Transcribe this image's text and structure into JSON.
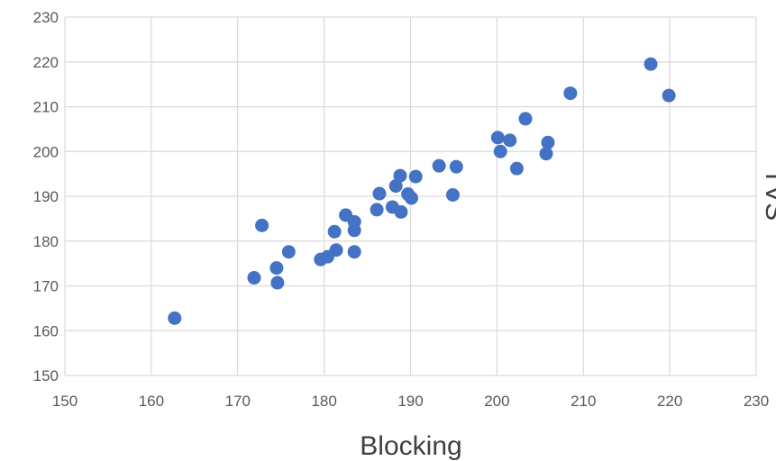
{
  "chart_data": {
    "type": "scatter",
    "title": "",
    "xlabel": "Blocking",
    "ylabel": "TVS",
    "xlim": [
      150,
      230
    ],
    "ylim": [
      150,
      230
    ],
    "x_ticks": [
      150,
      160,
      170,
      180,
      190,
      200,
      210,
      220,
      230
    ],
    "y_ticks": [
      150,
      160,
      170,
      180,
      190,
      200,
      210,
      220,
      230
    ],
    "grid": true,
    "legend": "none",
    "marker_color": "#4472C4",
    "series": [
      {
        "points": [
          [
            162.7,
            162.8
          ],
          [
            171.9,
            171.8
          ],
          [
            172.8,
            183.5
          ],
          [
            174.5,
            174.0
          ],
          [
            174.6,
            170.7
          ],
          [
            175.9,
            177.6
          ],
          [
            179.6,
            175.9
          ],
          [
            180.4,
            176.5
          ],
          [
            181.2,
            182.1
          ],
          [
            181.4,
            178.0
          ],
          [
            182.5,
            185.8
          ],
          [
            183.5,
            184.3
          ],
          [
            183.5,
            182.4
          ],
          [
            183.5,
            177.6
          ],
          [
            186.1,
            187.0
          ],
          [
            186.4,
            190.6
          ],
          [
            187.9,
            187.6
          ],
          [
            188.3,
            192.3
          ],
          [
            188.8,
            194.6
          ],
          [
            188.9,
            186.5
          ],
          [
            189.7,
            190.5
          ],
          [
            190.1,
            189.6
          ],
          [
            190.6,
            194.4
          ],
          [
            193.3,
            196.8
          ],
          [
            194.9,
            190.3
          ],
          [
            195.3,
            196.6
          ],
          [
            200.1,
            203.1
          ],
          [
            200.4,
            200.0
          ],
          [
            201.5,
            202.5
          ],
          [
            202.3,
            196.2
          ],
          [
            203.3,
            207.3
          ],
          [
            205.7,
            199.5
          ],
          [
            205.9,
            202.0
          ],
          [
            208.5,
            213.0
          ],
          [
            217.8,
            219.5
          ],
          [
            219.9,
            212.5
          ]
        ]
      }
    ]
  }
}
